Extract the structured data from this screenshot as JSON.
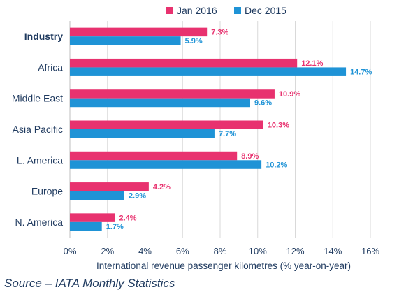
{
  "chart_data": {
    "type": "bar",
    "orientation": "horizontal",
    "categories": [
      "Industry",
      "Africa",
      "Middle East",
      "Asia Pacific",
      "L. America",
      "Europe",
      "N. America"
    ],
    "series": [
      {
        "name": "Jan 2016",
        "color": "#e8326f",
        "values": [
          7.3,
          12.1,
          10.9,
          10.3,
          8.9,
          4.2,
          2.4
        ],
        "labels": [
          "7.3%",
          "12.1%",
          "10.9%",
          "10.3%",
          "8.9%",
          "4.2%",
          "2.4%"
        ]
      },
      {
        "name": "Dec 2015",
        "color": "#1f93d6",
        "values": [
          5.9,
          14.7,
          9.6,
          7.7,
          10.2,
          2.9,
          1.7
        ],
        "labels": [
          "5.9%",
          "14.7%",
          "9.6%",
          "7.7%",
          "10.2%",
          "2.9%",
          "1.7%"
        ]
      }
    ],
    "xlabel": "International revenue passenger kilometres (% year-on-year)",
    "xlim": [
      0,
      16
    ],
    "xticks": [
      "0%",
      "2%",
      "4%",
      "6%",
      "8%",
      "10%",
      "12%",
      "14%",
      "16%"
    ],
    "grid": true,
    "legend_position": "top"
  },
  "footer": {
    "source": "Source – IATA Monthly Statistics"
  }
}
